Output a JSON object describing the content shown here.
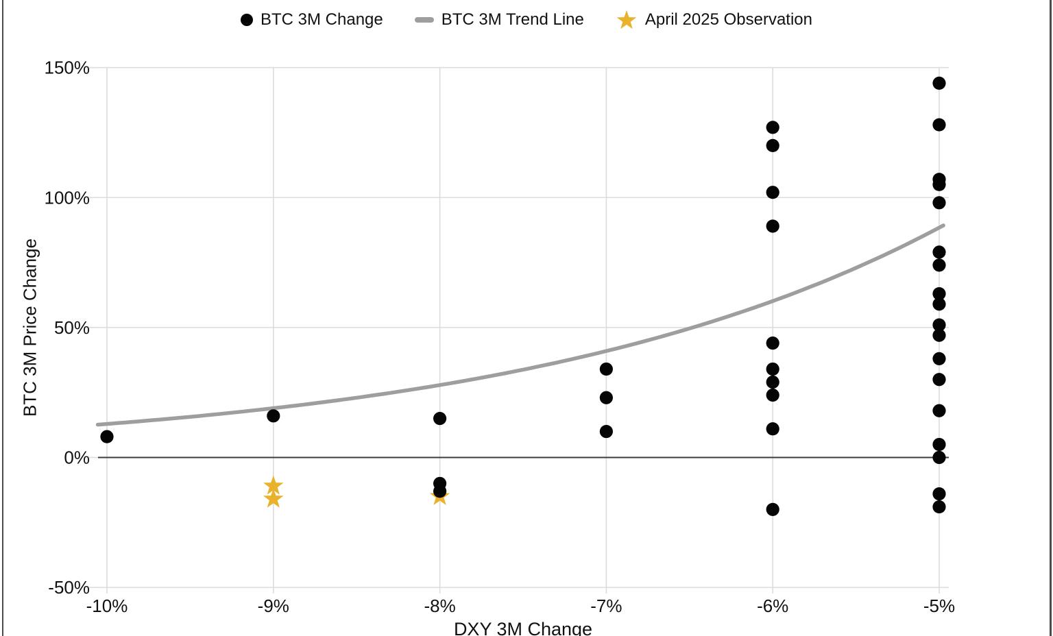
{
  "legend": {
    "items": [
      {
        "label": "BTC 3M Change",
        "marker": "dot",
        "color": "#050505"
      },
      {
        "label": "BTC 3M Trend Line",
        "marker": "dash",
        "color": "#9e9e9e"
      },
      {
        "label": "April 2025 Observation",
        "marker": "star",
        "color": "#E8B22A"
      }
    ]
  },
  "chart_data": {
    "type": "scatter",
    "title": "",
    "xlabel": "DXY 3M Change",
    "ylabel": "BTC 3M Price Change",
    "x_ticks": [
      "-10%",
      "-9%",
      "-8%",
      "-7%",
      "-6%",
      "-5%"
    ],
    "x_tick_values": [
      -10,
      -9,
      -8,
      -7,
      -6,
      -5
    ],
    "y_ticks": [
      "150%",
      "100%",
      "50%",
      "0%",
      "-50%"
    ],
    "y_tick_values": [
      150,
      100,
      50,
      0,
      -50
    ],
    "xlim": [
      -10.05,
      -4.94
    ],
    "ylim": [
      -50,
      150
    ],
    "grid": true,
    "legend_position": "top",
    "series": [
      {
        "name": "BTC 3M Change",
        "type": "scatter",
        "marker": "circle",
        "color": "#050505",
        "points": [
          [
            -10,
            8
          ],
          [
            -9,
            16
          ],
          [
            -8,
            15
          ],
          [
            -8,
            -10
          ],
          [
            -8,
            -13
          ],
          [
            -7,
            34
          ],
          [
            -7,
            23
          ],
          [
            -7,
            10
          ],
          [
            -6,
            127
          ],
          [
            -6,
            120
          ],
          [
            -6,
            102
          ],
          [
            -6,
            89
          ],
          [
            -6,
            44
          ],
          [
            -6,
            34
          ],
          [
            -6,
            29
          ],
          [
            -6,
            24
          ],
          [
            -6,
            11
          ],
          [
            -6,
            -20
          ],
          [
            -5,
            144
          ],
          [
            -5,
            128
          ],
          [
            -5,
            107
          ],
          [
            -5,
            105
          ],
          [
            -5,
            98
          ],
          [
            -5,
            79
          ],
          [
            -5,
            74
          ],
          [
            -5,
            63
          ],
          [
            -5,
            59
          ],
          [
            -5,
            51
          ],
          [
            -5,
            47
          ],
          [
            -5,
            38
          ],
          [
            -5,
            30
          ],
          [
            -5,
            18
          ],
          [
            -5,
            5
          ],
          [
            -5,
            0
          ],
          [
            -5,
            -14
          ],
          [
            -5,
            -19
          ]
        ]
      },
      {
        "name": "BTC 3M Trend Line",
        "type": "line",
        "color": "#9e9e9e",
        "trend": {
          "formula": "y = a * exp(b * (x + 10))",
          "a": 12.9,
          "b": 0.385
        },
        "points": [
          [
            -10,
            13
          ],
          [
            -9,
            19
          ],
          [
            -8,
            28
          ],
          [
            -7,
            41
          ],
          [
            -6,
            61
          ],
          [
            -5,
            89
          ]
        ]
      },
      {
        "name": "April 2025 Observation",
        "type": "scatter",
        "marker": "star",
        "color": "#E8B22A",
        "points": [
          [
            -9,
            -11
          ],
          [
            -9,
            -16
          ],
          [
            -8,
            -15
          ]
        ]
      }
    ]
  },
  "colors": {
    "dot": "#050505",
    "trend": "#9e9e9e",
    "star": "#E8B22A",
    "grid": "#dcdcdc",
    "zero_axis": "#3c3c3c",
    "text": "#111111",
    "window_border": "#4a4a4a"
  }
}
